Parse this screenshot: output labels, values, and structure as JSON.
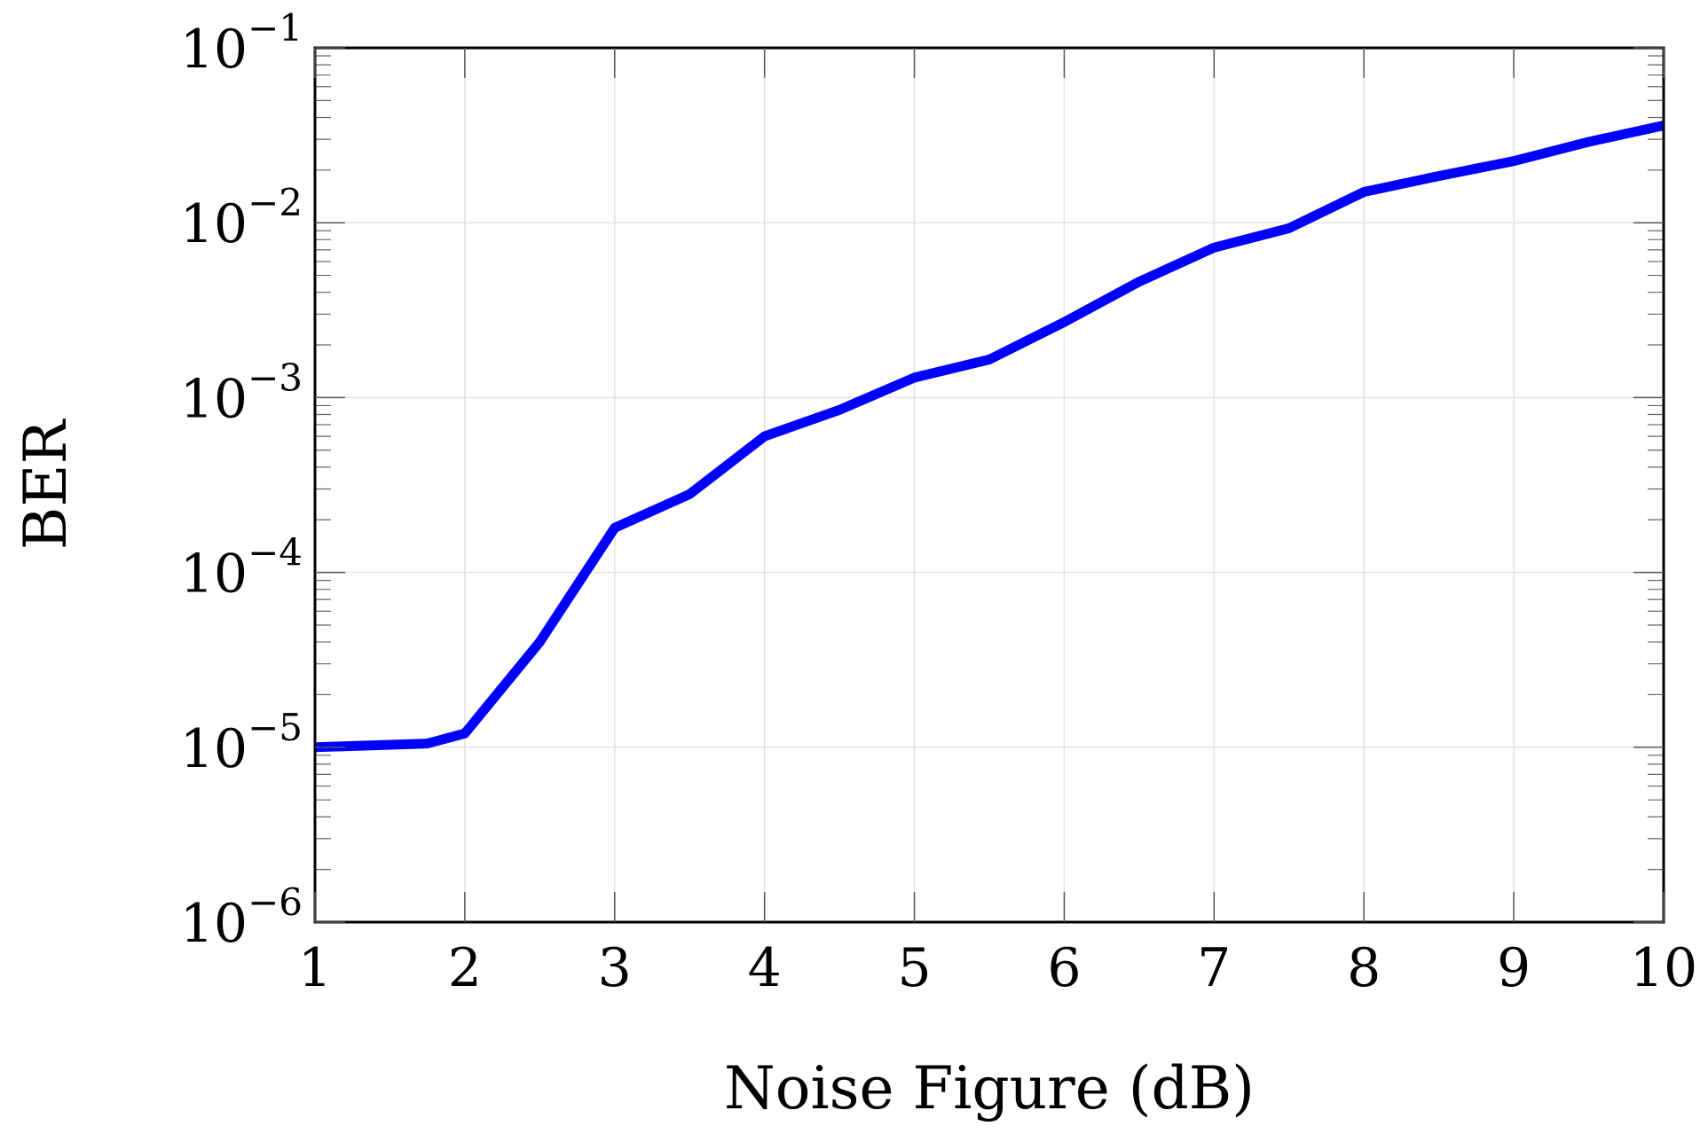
{
  "chart_data": {
    "type": "line",
    "xlabel": "Noise Figure (dB)",
    "ylabel": "BER",
    "xlim": [
      1,
      10
    ],
    "ylim": [
      1e-06,
      0.1
    ],
    "yscale": "log",
    "grid": true,
    "x_ticks": [
      "1",
      "2",
      "3",
      "4",
      "5",
      "6",
      "7",
      "8",
      "9",
      "10"
    ],
    "y_ticks": [
      {
        "base": "10",
        "exp": "−6",
        "value": 1e-06
      },
      {
        "base": "10",
        "exp": "−5",
        "value": 1e-05
      },
      {
        "base": "10",
        "exp": "−4",
        "value": 0.0001
      },
      {
        "base": "10",
        "exp": "−3",
        "value": 0.001
      },
      {
        "base": "10",
        "exp": "−2",
        "value": 0.01
      },
      {
        "base": "10",
        "exp": "−1",
        "value": 0.1
      }
    ],
    "series": [
      {
        "color": "#0000ff",
        "x": [
          1,
          1.75,
          2,
          2.5,
          3,
          3.5,
          4,
          4.5,
          5,
          5.5,
          6,
          6.5,
          7,
          7.5,
          8,
          8.5,
          9,
          9.5,
          10
        ],
        "y": [
          1e-05,
          1.05e-05,
          1.2e-05,
          4e-05,
          0.00018,
          0.00028,
          0.0006,
          0.00085,
          0.0013,
          0.00165,
          0.0027,
          0.0046,
          0.0072,
          0.0093,
          0.015,
          0.0185,
          0.0225,
          0.029,
          0.036
        ]
      }
    ]
  }
}
